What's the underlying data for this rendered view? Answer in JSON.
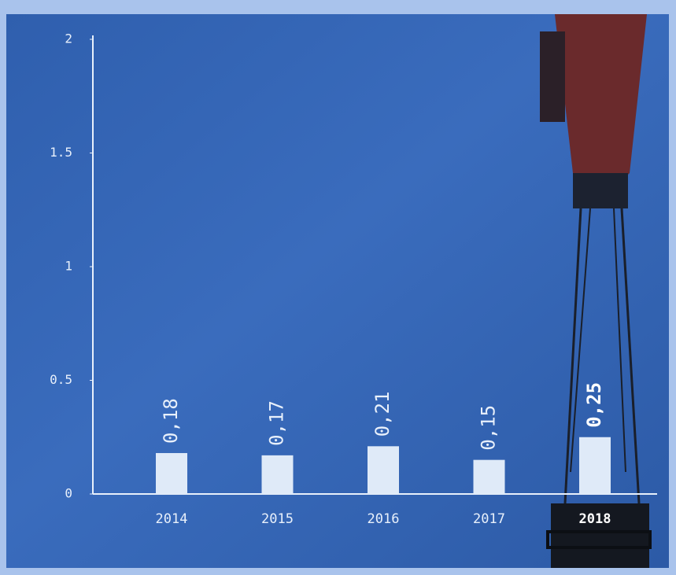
{
  "chart_data": {
    "type": "bar",
    "categories": [
      "2014",
      "2015",
      "2016",
      "2017",
      "2018"
    ],
    "values": [
      0.18,
      0.17,
      0.21,
      0.15,
      0.25
    ],
    "value_labels": [
      "0,18",
      "0,17",
      "0,21",
      "0,15",
      "0,25"
    ],
    "color": "#dfeaf8",
    "ylim": [
      0,
      2
    ],
    "yticks": [
      0,
      0.5,
      1,
      1.5,
      2
    ]
  }
}
